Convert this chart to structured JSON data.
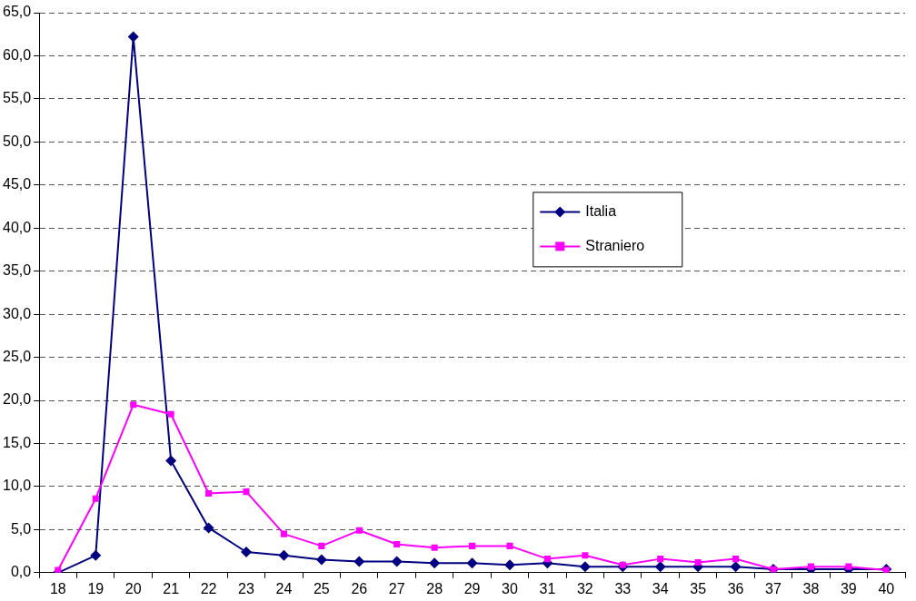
{
  "chart_data": {
    "type": "line",
    "categories": [
      "18",
      "19",
      "20",
      "21",
      "22",
      "23",
      "24",
      "25",
      "26",
      "27",
      "28",
      "29",
      "30",
      "31",
      "32",
      "33",
      "34",
      "35",
      "36",
      "37",
      "38",
      "39",
      "40"
    ],
    "series": [
      {
        "name": "Italia",
        "color": "#000080",
        "marker": "diamond",
        "values": [
          0.0,
          2.0,
          62.2,
          13.0,
          5.2,
          2.4,
          2.0,
          1.5,
          1.3,
          1.3,
          1.1,
          1.1,
          0.9,
          1.1,
          0.7,
          0.7,
          0.7,
          0.7,
          0.7,
          0.4,
          0.4,
          0.4,
          0.4
        ]
      },
      {
        "name": "Straniero",
        "color": "#ff00ff",
        "marker": "square",
        "values": [
          0.3,
          8.6,
          19.5,
          18.4,
          9.2,
          9.4,
          4.5,
          3.1,
          4.9,
          3.3,
          2.9,
          3.1,
          3.1,
          1.6,
          2.0,
          0.9,
          1.6,
          1.2,
          1.6,
          0.4,
          0.7,
          0.7,
          0.3
        ]
      }
    ],
    "ylim": [
      0,
      65
    ],
    "yticks": [
      {
        "value": 0,
        "label": "0,0"
      },
      {
        "value": 5,
        "label": "5,0"
      },
      {
        "value": 10,
        "label": "10,0"
      },
      {
        "value": 15,
        "label": "15,0"
      },
      {
        "value": 20,
        "label": "20,0"
      },
      {
        "value": 25,
        "label": "25,0"
      },
      {
        "value": 30,
        "label": "30,0"
      },
      {
        "value": 35,
        "label": "35,0"
      },
      {
        "value": 40,
        "label": "40,0"
      },
      {
        "value": 45,
        "label": "45,0"
      },
      {
        "value": 50,
        "label": "50,0"
      },
      {
        "value": 55,
        "label": "55,0"
      },
      {
        "value": 60,
        "label": "60,0"
      },
      {
        "value": 65,
        "label": "65,0"
      }
    ],
    "grid": "y",
    "legend": "right",
    "line_style": "solid"
  }
}
